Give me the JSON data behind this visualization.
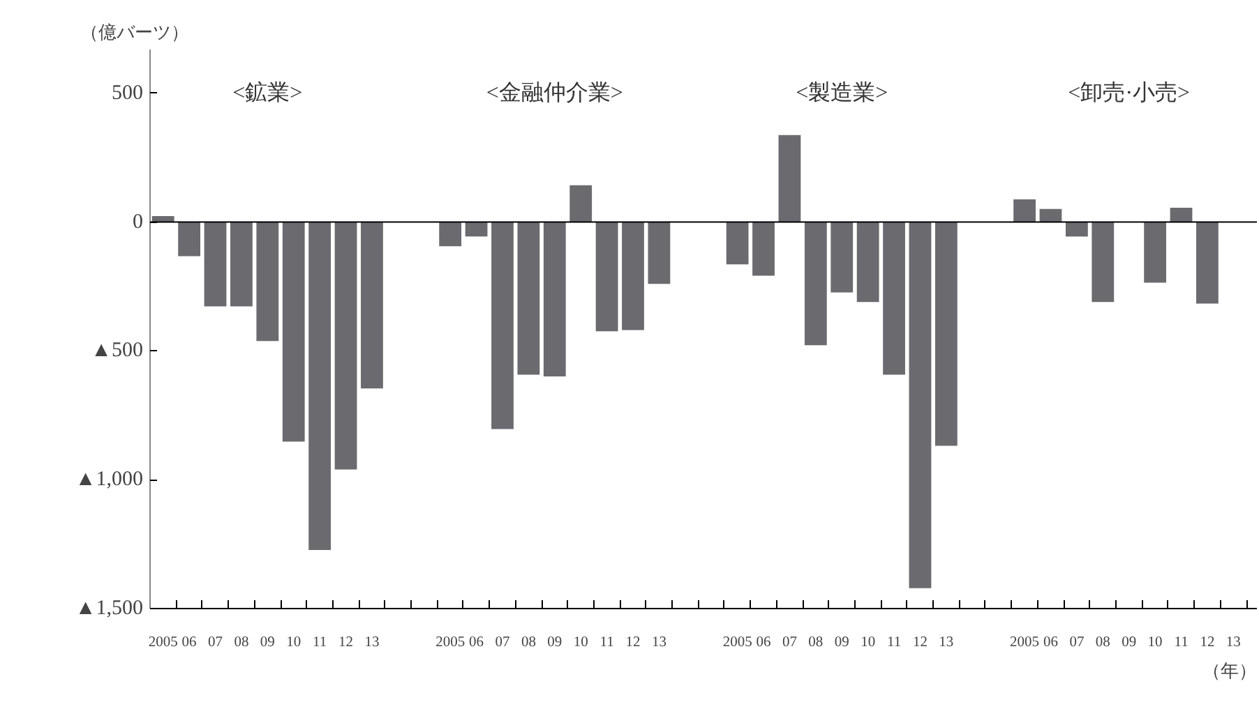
{
  "chart_data": {
    "type": "bar",
    "ylabel": "（億バーツ）",
    "xlabel": "（年）",
    "annotations": [
      "<鉱業>",
      "<金融仲介業>",
      "<製造業>",
      "<卸売·小売>"
    ],
    "categories": [
      "2005",
      "06",
      "07",
      "08",
      "09",
      "10",
      "11",
      "12",
      "13",
      null,
      null,
      "2005",
      "06",
      "07",
      "08",
      "09",
      "10",
      "11",
      "12",
      "13",
      null,
      null,
      "2005",
      "06",
      "07",
      "08",
      "09",
      "10",
      "11",
      "12",
      "13",
      null,
      null,
      "2005",
      "06",
      "07",
      "08",
      "09",
      "10",
      "11",
      "12",
      "13"
    ],
    "values": [
      23,
      -132,
      -327,
      -327,
      -462,
      -852,
      -1273,
      -960,
      -646,
      null,
      null,
      -94,
      -56,
      -803,
      -592,
      -599,
      143,
      -424,
      -419,
      -240,
      null,
      null,
      -164,
      -208,
      338,
      -478,
      -273,
      -310,
      -592,
      -1421,
      -868,
      null,
      null,
      88,
      51,
      -56,
      -310,
      null,
      -235,
      56,
      -316,
      null
    ],
    "color": "#6b6b6f",
    "ylim": [
      -1500,
      670
    ],
    "yticks": [
      500,
      0,
      {
        "value": -500,
        "label": "▲500"
      },
      {
        "value": -1000,
        "label": "▲1,000"
      },
      {
        "value": -1500,
        "label": "▲1,500"
      }
    ],
    "ref_lines": [
      {
        "axis": "y",
        "value": 0,
        "color": "#000000"
      }
    ],
    "grid": false
  }
}
